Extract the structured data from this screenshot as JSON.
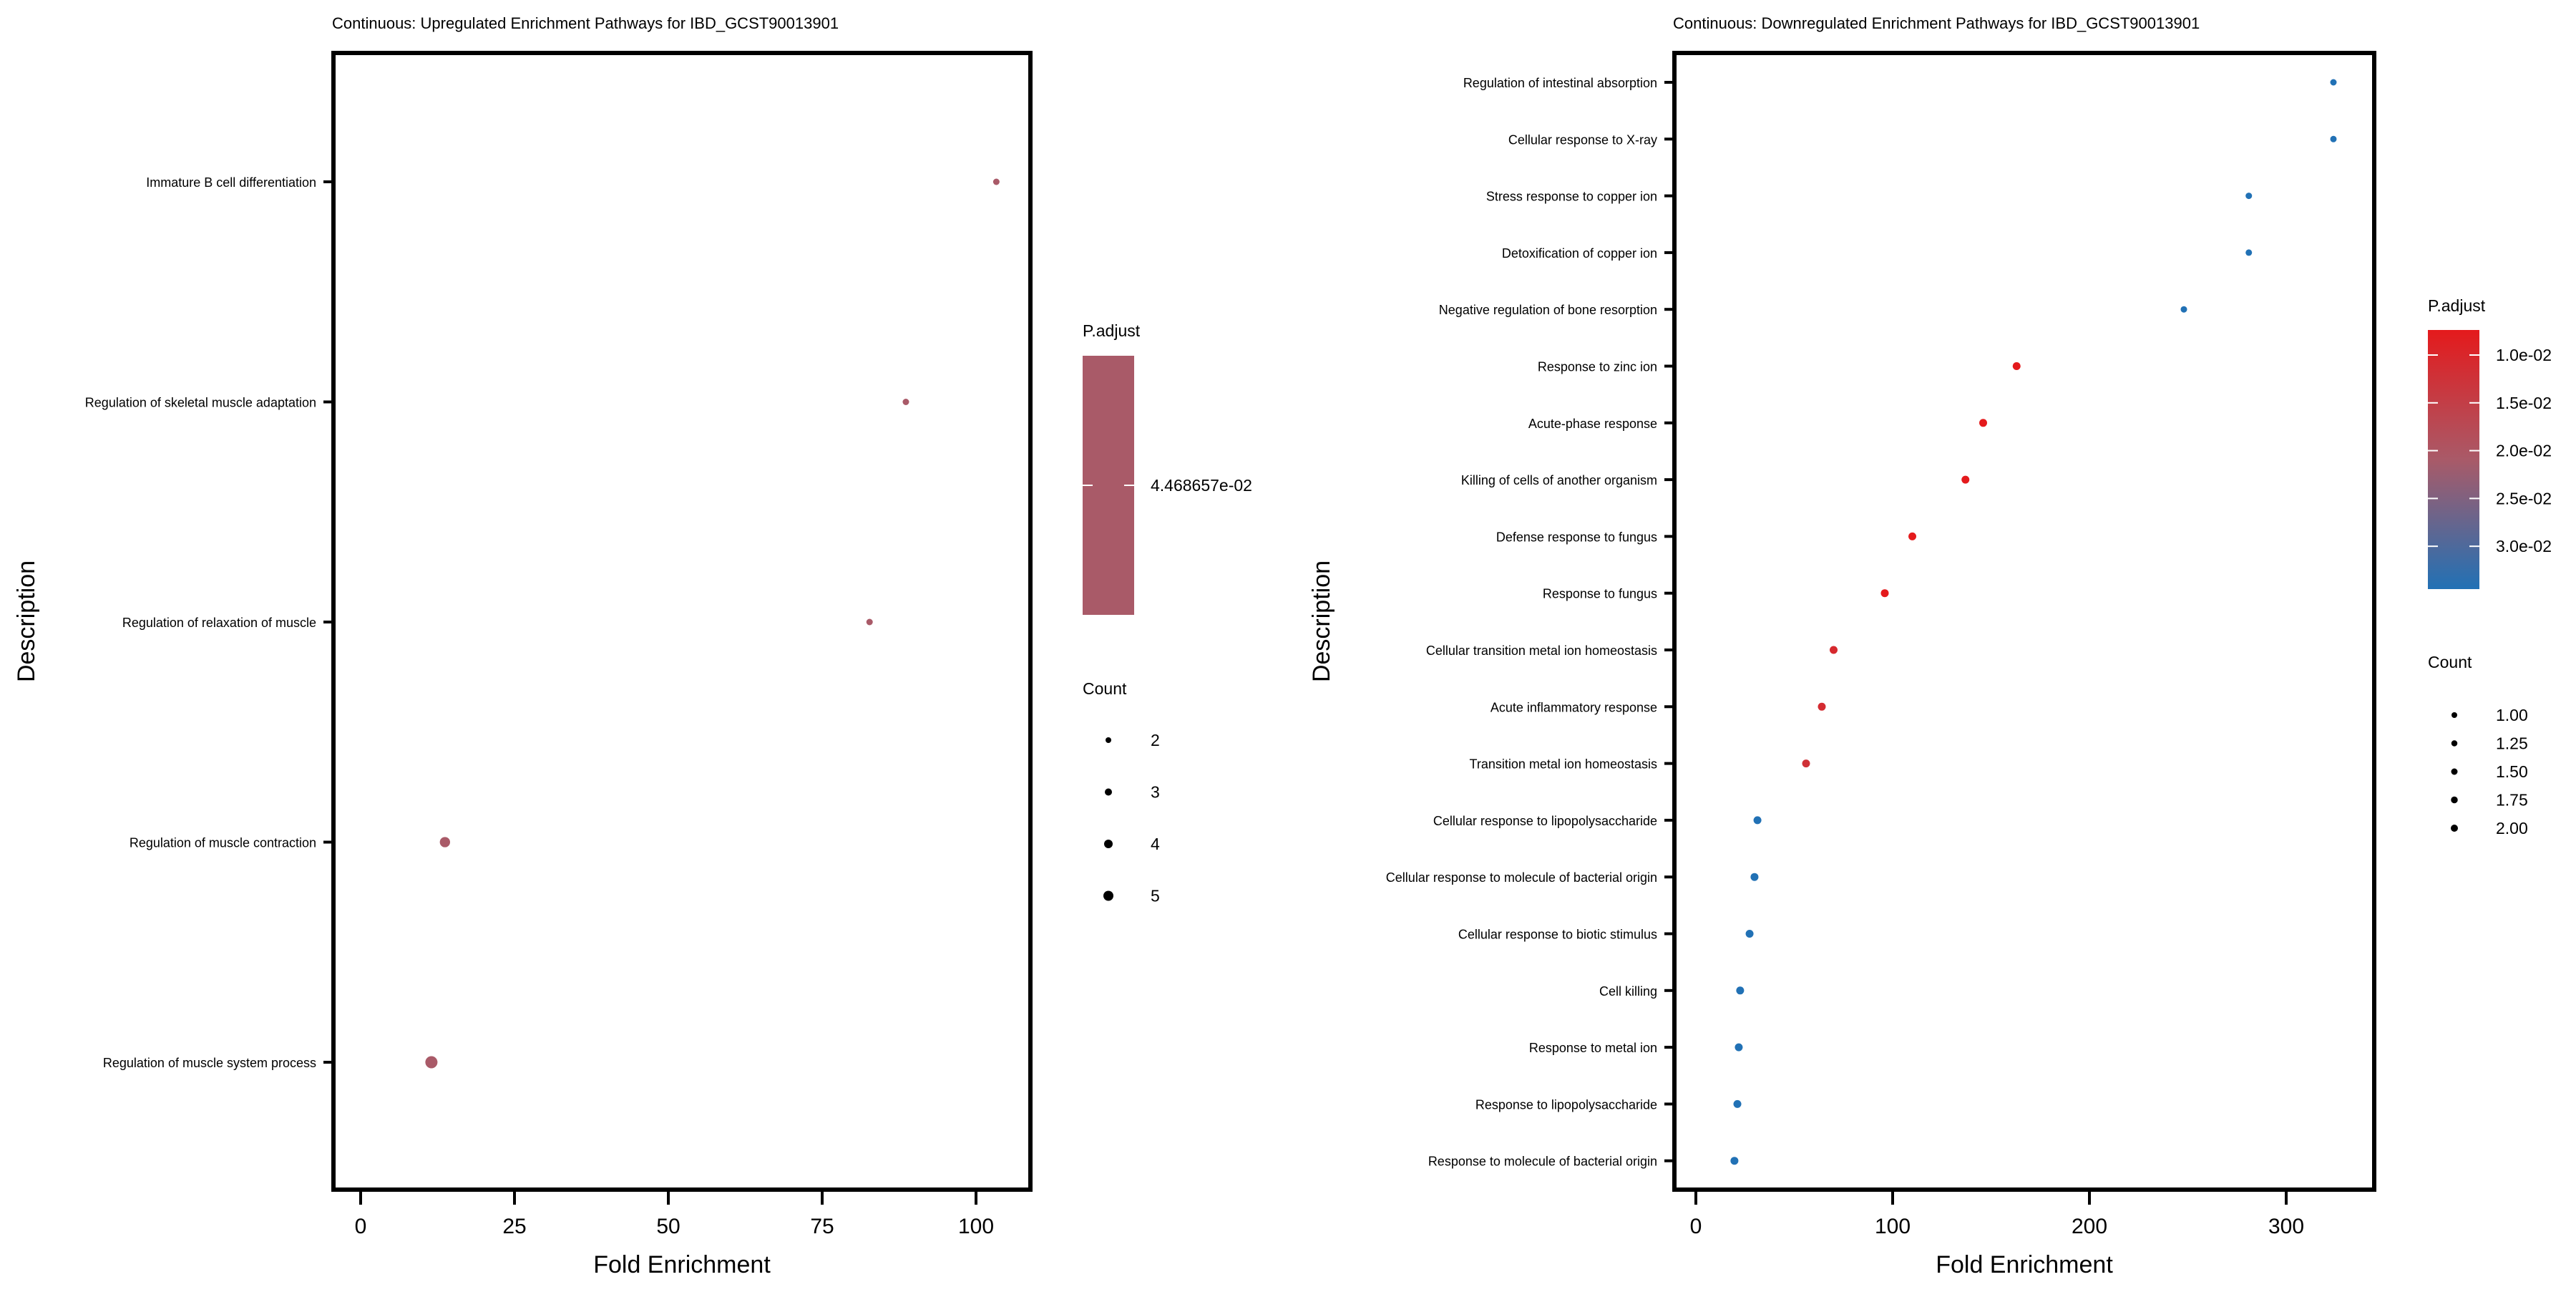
{
  "chart_data": [
    {
      "type": "scatter",
      "title": "Continuous: Upregulated Enrichment Pathways for IBD_GCST90013901",
      "xlabel": "Fold Enrichment",
      "ylabel": "Description",
      "xlim": [
        -5,
        108
      ],
      "x_ticks": [
        0,
        25,
        50,
        75,
        100
      ],
      "x_tick_labels": [
        "0",
        "25",
        "50",
        "75",
        "100"
      ],
      "grid": false,
      "categories": [
        "Immature B cell differentiation",
        "Regulation of skeletal muscle adaptation",
        "Regulation of relaxation of muscle",
        "Regulation of muscle contraction",
        "Regulation of muscle system process"
      ],
      "points": [
        {
          "description": "Immature B cell differentiation",
          "fold_enrichment": 103.3,
          "count": 2,
          "p_adjust": 0.04468657
        },
        {
          "description": "Regulation of skeletal muscle adaptation",
          "fold_enrichment": 88.6,
          "count": 2,
          "p_adjust": 0.04468657
        },
        {
          "description": "Regulation of relaxation of muscle",
          "fold_enrichment": 82.7,
          "count": 2,
          "p_adjust": 0.04468657
        },
        {
          "description": "Regulation of muscle contraction",
          "fold_enrichment": 13.7,
          "count": 4,
          "p_adjust": 0.04468657
        },
        {
          "description": "Regulation of muscle system process",
          "fold_enrichment": 11.5,
          "count": 5,
          "p_adjust": 0.04468657
        }
      ],
      "color_legend": {
        "title": "P.adjust",
        "labels": [
          "4.468657e-02"
        ],
        "color": "#a95a68"
      },
      "size_legend": {
        "title": "Count",
        "values": [
          2,
          3,
          4,
          5
        ],
        "labels": [
          "2",
          "3",
          "4",
          "5"
        ]
      },
      "legend_position": "right"
    },
    {
      "type": "scatter",
      "title": "Continuous: Downregulated Enrichment Pathways for IBD_GCST90013901",
      "xlabel": "Fold Enrichment",
      "ylabel": "Description",
      "xlim": [
        -15,
        340
      ],
      "x_ticks": [
        0,
        100,
        200,
        300
      ],
      "x_tick_labels": [
        "0",
        "100",
        "200",
        "300"
      ],
      "grid": false,
      "categories": [
        "Regulation of intestinal absorption",
        "Cellular response to X-ray",
        "Stress response to copper ion",
        "Detoxification of copper ion",
        "Negative regulation of bone resorption",
        "Response to zinc ion",
        "Acute-phase response",
        "Killing of cells of another organism",
        "Defense response to fungus",
        "Response to fungus",
        "Cellular transition metal ion homeostasis",
        "Acute inflammatory response",
        "Transition metal ion homeostasis",
        "Cellular response to lipopolysaccharide",
        "Cellular response to molecule of bacterial origin",
        "Cellular response to biotic stimulus",
        "Cell killing",
        "Response to metal ion",
        "Response to lipopolysaccharide",
        "Response to molecule of bacterial origin"
      ],
      "points": [
        {
          "description": "Regulation of intestinal absorption",
          "fold_enrichment": 324,
          "count": 1,
          "p_adjust": 0.033
        },
        {
          "description": "Cellular response to X-ray",
          "fold_enrichment": 324,
          "count": 1,
          "p_adjust": 0.033
        },
        {
          "description": "Stress response to copper ion",
          "fold_enrichment": 281,
          "count": 1,
          "p_adjust": 0.033
        },
        {
          "description": "Detoxification of copper ion",
          "fold_enrichment": 281,
          "count": 1,
          "p_adjust": 0.033
        },
        {
          "description": "Negative regulation of bone resorption",
          "fold_enrichment": 248,
          "count": 1,
          "p_adjust": 0.033
        },
        {
          "description": "Response to zinc ion",
          "fold_enrichment": 163,
          "count": 2,
          "p_adjust": 0.0056
        },
        {
          "description": "Acute-phase response",
          "fold_enrichment": 146,
          "count": 2,
          "p_adjust": 0.0056
        },
        {
          "description": "Killing of cells of another organism",
          "fold_enrichment": 137,
          "count": 2,
          "p_adjust": 0.0056
        },
        {
          "description": "Defense response to fungus",
          "fold_enrichment": 110,
          "count": 2,
          "p_adjust": 0.0056
        },
        {
          "description": "Response to fungus",
          "fold_enrichment": 96,
          "count": 2,
          "p_adjust": 0.0056
        },
        {
          "description": "Cellular transition metal ion homeostasis",
          "fold_enrichment": 70,
          "count": 2,
          "p_adjust": 0.0088
        },
        {
          "description": "Acute inflammatory response",
          "fold_enrichment": 64,
          "count": 2,
          "p_adjust": 0.0093
        },
        {
          "description": "Transition metal ion homeostasis",
          "fold_enrichment": 56,
          "count": 2,
          "p_adjust": 0.0105
        },
        {
          "description": "Cellular response to lipopolysaccharide",
          "fold_enrichment": 31.3,
          "count": 2,
          "p_adjust": 0.033
        },
        {
          "description": "Cellular response to molecule of bacterial origin",
          "fold_enrichment": 29.8,
          "count": 2,
          "p_adjust": 0.033
        },
        {
          "description": "Cellular response to biotic stimulus",
          "fold_enrichment": 27.3,
          "count": 2,
          "p_adjust": 0.033
        },
        {
          "description": "Cell killing",
          "fold_enrichment": 22.5,
          "count": 2,
          "p_adjust": 0.033
        },
        {
          "description": "Response to metal ion",
          "fold_enrichment": 21.8,
          "count": 2,
          "p_adjust": 0.033
        },
        {
          "description": "Response to lipopolysaccharide",
          "fold_enrichment": 21.1,
          "count": 2,
          "p_adjust": 0.033
        },
        {
          "description": "Response to molecule of bacterial origin",
          "fold_enrichment": 19.6,
          "count": 2,
          "p_adjust": 0.033
        }
      ],
      "color_legend": {
        "title": "P.adjust",
        "labels": [
          "1.0e-02",
          "1.5e-02",
          "2.0e-02",
          "2.5e-02",
          "3.0e-02"
        ],
        "values": [
          0.01,
          0.015,
          0.02,
          0.025,
          0.03
        ],
        "range": [
          0.0056,
          0.033
        ],
        "low_color": "#e41a1c",
        "high_color": "#2171b5"
      },
      "size_legend": {
        "title": "Count",
        "values": [
          1.0,
          1.25,
          1.5,
          1.75,
          2.0
        ],
        "labels": [
          "1.00",
          "1.25",
          "1.50",
          "1.75",
          "2.00"
        ]
      },
      "legend_position": "right"
    }
  ]
}
